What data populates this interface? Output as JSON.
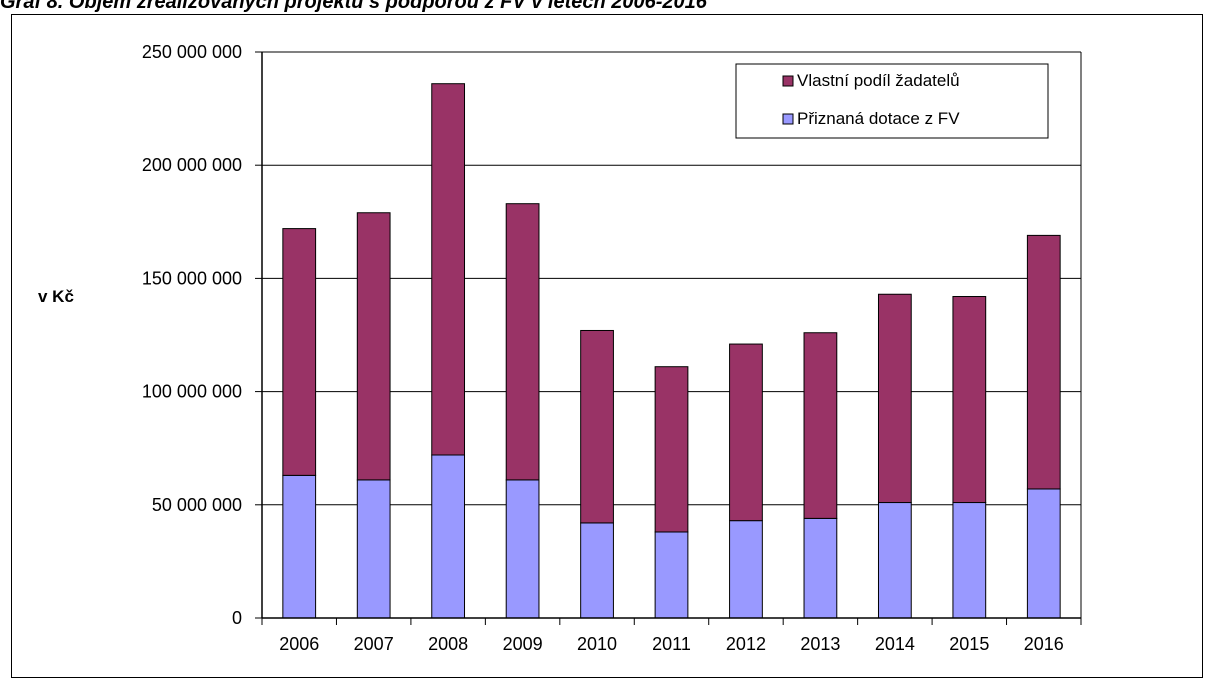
{
  "chart_data": {
    "type": "bar",
    "stacked": true,
    "title": "Graf 8. Objem zrealizovaných projektů s podporou z FV v letech 2006-2016",
    "ylabel": "v Kč",
    "xlabel": "",
    "categories": [
      "2006",
      "2007",
      "2008",
      "2009",
      "2010",
      "2011",
      "2012",
      "2013",
      "2014",
      "2015",
      "2016"
    ],
    "series": [
      {
        "name": "Přiznaná dotace z FV",
        "color": "#9999ff",
        "values": [
          63000000,
          61000000,
          72000000,
          61000000,
          42000000,
          38000000,
          43000000,
          44000000,
          51000000,
          51000000,
          57000000
        ]
      },
      {
        "name": "Vlastní podíl žadatelů",
        "color": "#993366",
        "values": [
          109000000,
          118000000,
          164000000,
          122000000,
          85000000,
          73000000,
          78000000,
          82000000,
          92000000,
          91000000,
          112000000
        ]
      }
    ],
    "ylim": [
      0,
      250000000
    ],
    "yticks": [
      0,
      50000000,
      100000000,
      150000000,
      200000000,
      250000000
    ],
    "ytick_labels": [
      "0",
      "50 000 000",
      "100 000 000",
      "150 000 000",
      "200 000 000",
      "250 000 000"
    ],
    "grid": true,
    "legend_position": "top-right",
    "legend_order": [
      "Vlastní podíl žadatelů",
      "Přiznaná dotace z FV"
    ]
  }
}
